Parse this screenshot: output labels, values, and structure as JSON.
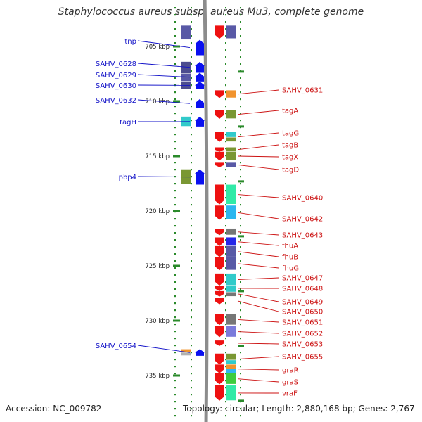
{
  "title": "Staphylococcus aureus subsp. aureus Mu3, complete genome",
  "accession": "Accession: NC_009782",
  "topology": "Topology: circular; Length: 2,880,168 bp; Genes: 2,767",
  "colors": {
    "backbone": "#8c8c8c",
    "tick": "#2a8a2a",
    "left_label": "#1212c8",
    "right_label": "#cc1111",
    "forward_arrow": "#0a10f0",
    "reverse_arrow": "#ee1111"
  },
  "scale_ticks": [
    {
      "pos": 705,
      "label": "705 kbp"
    },
    {
      "pos": 710,
      "label": "710 kbp"
    },
    {
      "pos": 715,
      "label": "715 kbp"
    },
    {
      "pos": 720,
      "label": "720 kbp"
    },
    {
      "pos": 725,
      "label": "725 kbp"
    },
    {
      "pos": 730,
      "label": "730 kbp"
    },
    {
      "pos": 735,
      "label": "735 kbp"
    }
  ],
  "forward_genes": [
    {
      "name": "tnp",
      "start": 704.4,
      "end": 705.8
    },
    {
      "name": "SAHV_0628",
      "start": 706.4,
      "end": 707.4
    },
    {
      "name": "SAHV_0629",
      "start": 707.4,
      "end": 708.2
    },
    {
      "name": "SAHV_0630",
      "start": 708.2,
      "end": 708.9
    },
    {
      "name": "SAHV_0632",
      "start": 709.8,
      "end": 710.6
    },
    {
      "name": "tagH",
      "start": 711.4,
      "end": 712.3
    },
    {
      "name": "pbp4",
      "start": 716.2,
      "end": 717.6
    },
    {
      "name": "SAHV_0654",
      "start": 732.6,
      "end": 733.2
    }
  ],
  "forward_labels": [
    {
      "text": "tnp",
      "gene": 0
    },
    {
      "text": "SAHV_0628",
      "gene": 1
    },
    {
      "text": "SAHV_0629",
      "gene": 2
    },
    {
      "text": "SAHV_0630",
      "gene": 3
    },
    {
      "text": "SAHV_0632",
      "gene": 4
    },
    {
      "text": "tagH",
      "gene": 5
    },
    {
      "text": "pbp4",
      "gene": 6
    },
    {
      "text": "SAHV_0654",
      "gene": 7
    }
  ],
  "reverse_genes": [
    {
      "name": "",
      "start": 703.1,
      "end": 704.3
    },
    {
      "name": "SAHV_0631",
      "start": 709.0,
      "end": 709.7
    },
    {
      "name": "tagA",
      "start": 710.8,
      "end": 711.6
    },
    {
      "name": "tagG",
      "start": 712.8,
      "end": 713.7
    },
    {
      "name": "tagB",
      "start": 714.2,
      "end": 714.6
    },
    {
      "name": "tagX",
      "start": 714.6,
      "end": 715.4
    },
    {
      "name": "tagD",
      "start": 715.6,
      "end": 716.0
    },
    {
      "name": "SAHV_0640",
      "start": 717.6,
      "end": 719.4
    },
    {
      "name": "SAHV_0642",
      "start": 719.5,
      "end": 720.8
    },
    {
      "name": "SAHV_0643",
      "start": 721.6,
      "end": 722.2
    },
    {
      "name": "fhuA",
      "start": 722.4,
      "end": 723.2
    },
    {
      "name": "fhuB",
      "start": 723.2,
      "end": 724.2
    },
    {
      "name": "fhuG",
      "start": 724.2,
      "end": 725.4
    },
    {
      "name": "SAHV_0647",
      "start": 725.7,
      "end": 726.8
    },
    {
      "name": "SAHV_0648",
      "start": 726.8,
      "end": 727.3
    },
    {
      "name": "SAHV_0649",
      "start": 727.3,
      "end": 727.8
    },
    {
      "name": "SAHV_0650",
      "start": 727.9,
      "end": 728.5
    },
    {
      "name": "SAHV_0651",
      "start": 729.4,
      "end": 730.4
    },
    {
      "name": "SAHV_0652",
      "start": 730.5,
      "end": 731.5
    },
    {
      "name": "SAHV_0653",
      "start": 731.8,
      "end": 732.3
    },
    {
      "name": "SAHV_0655",
      "start": 733.0,
      "end": 734.0
    },
    {
      "name": "graR",
      "start": 734.0,
      "end": 734.8
    },
    {
      "name": "graS",
      "start": 734.8,
      "end": 735.8
    },
    {
      "name": "vraF",
      "start": 735.9,
      "end": 737.3
    }
  ],
  "reverse_labels": [
    {
      "text": "SAHV_0631",
      "gene": 1
    },
    {
      "text": "tagA",
      "gene": 2
    },
    {
      "text": "tagG",
      "gene": 3
    },
    {
      "text": "tagB",
      "gene": 4
    },
    {
      "text": "tagX",
      "gene": 5
    },
    {
      "text": "tagD",
      "gene": 6
    },
    {
      "text": "SAHV_0640",
      "gene": 7
    },
    {
      "text": "SAHV_0642",
      "gene": 8
    },
    {
      "text": "SAHV_0643",
      "gene": 9
    },
    {
      "text": "fhuA",
      "gene": 10
    },
    {
      "text": "fhuB",
      "gene": 11
    },
    {
      "text": "fhuG",
      "gene": 12
    },
    {
      "text": "SAHV_0647",
      "gene": 13
    },
    {
      "text": "SAHV_0648",
      "gene": 14
    },
    {
      "text": "SAHV_0649",
      "gene": 15
    },
    {
      "text": "SAHV_0650",
      "gene": 16
    },
    {
      "text": "SAHV_0651",
      "gene": 17
    },
    {
      "text": "SAHV_0652",
      "gene": 18
    },
    {
      "text": "SAHV_0653",
      "gene": 19
    },
    {
      "text": "SAHV_0655",
      "gene": 20
    },
    {
      "text": "graR",
      "gene": 21
    },
    {
      "text": "graS",
      "gene": 22
    },
    {
      "text": "vraF",
      "gene": 23
    }
  ],
  "cog_blocks": [
    {
      "start": 703.1,
      "end": 704.4,
      "track": "fwd-cog",
      "color": "#4b4b9e"
    },
    {
      "start": 706.4,
      "end": 707.5,
      "track": "fwd-cog",
      "color": "#3d3d86"
    },
    {
      "start": 707.5,
      "end": 708.2,
      "track": "fwd-cog",
      "color": "#4b4b9e"
    },
    {
      "start": 708.2,
      "end": 708.9,
      "track": "fwd-cog",
      "color": "#3d3d86"
    },
    {
      "start": 711.4,
      "end": 712.3,
      "track": "fwd-cog",
      "color": "#1fc6c6"
    },
    {
      "start": 716.2,
      "end": 717.6,
      "track": "fwd-cog",
      "color": "#6f8e22"
    },
    {
      "start": 732.6,
      "end": 732.9,
      "track": "fwd-cog",
      "color": "#f08a1c"
    },
    {
      "start": 732.9,
      "end": 733.2,
      "track": "fwd-cog",
      "color": "#aaaaaa"
    },
    {
      "start": 703.1,
      "end": 704.3,
      "track": "rev-cog",
      "color": "#4b4b9e"
    },
    {
      "start": 709.0,
      "end": 709.7,
      "track": "rev-cog",
      "color": "#f08a1c"
    },
    {
      "start": 710.8,
      "end": 711.6,
      "track": "rev-cog",
      "color": "#6f8e22"
    },
    {
      "start": 712.8,
      "end": 713.3,
      "track": "rev-cog",
      "color": "#1fc6c6"
    },
    {
      "start": 713.3,
      "end": 713.7,
      "track": "rev-cog",
      "color": "#6f8e22"
    },
    {
      "start": 714.2,
      "end": 714.6,
      "track": "rev-cog",
      "color": "#6f8e22"
    },
    {
      "start": 714.6,
      "end": 715.4,
      "track": "rev-cog",
      "color": "#6f8e22"
    },
    {
      "start": 715.6,
      "end": 716.0,
      "track": "rev-cog",
      "color": "#4b4b9e"
    },
    {
      "start": 717.6,
      "end": 719.4,
      "track": "rev-cog",
      "color": "#1fe8a0"
    },
    {
      "start": 719.5,
      "end": 720.8,
      "track": "rev-cog",
      "color": "#1ab0ee"
    },
    {
      "start": 721.6,
      "end": 722.2,
      "track": "rev-cog",
      "color": "#6a6a6a"
    },
    {
      "start": 722.4,
      "end": 723.2,
      "track": "rev-cog",
      "color": "#1414e6"
    },
    {
      "start": 723.2,
      "end": 724.2,
      "track": "rev-cog",
      "color": "#4b4b9e"
    },
    {
      "start": 724.2,
      "end": 725.4,
      "track": "rev-cog",
      "color": "#4b4b9e"
    },
    {
      "start": 725.7,
      "end": 726.8,
      "track": "rev-cog",
      "color": "#1fc6c6"
    },
    {
      "start": 726.8,
      "end": 727.4,
      "track": "rev-cog",
      "color": "#1fc6c6"
    },
    {
      "start": 727.4,
      "end": 727.8,
      "track": "rev-cog",
      "color": "#6a6a6a"
    },
    {
      "start": 729.4,
      "end": 730.4,
      "track": "rev-cog",
      "color": "#6a6a6a"
    },
    {
      "start": 730.5,
      "end": 731.5,
      "track": "rev-cog",
      "color": "#7070d8"
    },
    {
      "start": 733.0,
      "end": 733.6,
      "track": "rev-cog",
      "color": "#6f8e22"
    },
    {
      "start": 733.6,
      "end": 734.0,
      "track": "rev-cog",
      "color": "#1fc6c6"
    },
    {
      "start": 734.0,
      "end": 734.4,
      "track": "rev-cog",
      "color": "#f08a1c"
    },
    {
      "start": 734.4,
      "end": 734.8,
      "track": "rev-cog",
      "color": "#1fb0ee"
    },
    {
      "start": 734.8,
      "end": 735.8,
      "track": "rev-cog",
      "color": "#2ec82e"
    },
    {
      "start": 735.9,
      "end": 737.3,
      "track": "rev-cog",
      "color": "#1fe8a0"
    }
  ]
}
